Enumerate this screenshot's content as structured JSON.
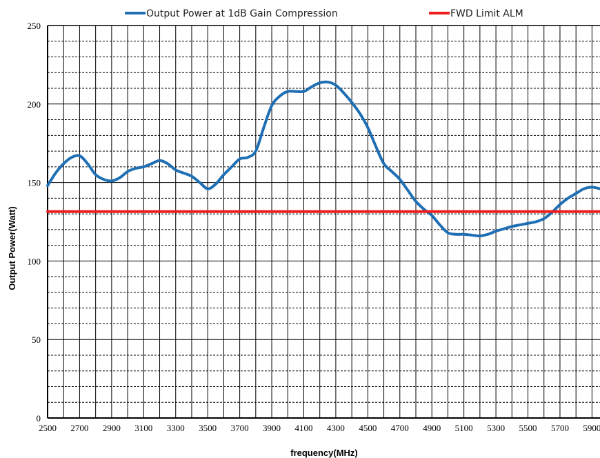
{
  "chart_data": {
    "type": "line",
    "xlabel": "frequency(MHz)",
    "ylabel": "Output Power(Watt)",
    "xlim": [
      2500,
      5950
    ],
    "ylim": [
      0,
      250
    ],
    "grid": true,
    "legend_position": "top",
    "y_ticks": [
      "0",
      "50",
      "100",
      "150",
      "200",
      "250"
    ],
    "x_ticks": [
      "2500",
      "2700",
      "2900",
      "3100",
      "3300",
      "3500",
      "3700",
      "3900",
      "4100",
      "4300",
      "4500",
      "4700",
      "4900",
      "5100",
      "5300",
      "5500",
      "5700",
      "5900"
    ],
    "series": [
      {
        "name": "Output Power at 1dB Gain Compression",
        "color": "#1f6fb4",
        "x": [
          2500,
          2550,
          2600,
          2650,
          2700,
          2750,
          2800,
          2850,
          2900,
          2950,
          3000,
          3050,
          3100,
          3150,
          3200,
          3250,
          3300,
          3350,
          3400,
          3450,
          3500,
          3550,
          3600,
          3650,
          3700,
          3750,
          3800,
          3850,
          3900,
          3950,
          4000,
          4050,
          4100,
          4150,
          4200,
          4250,
          4300,
          4350,
          4400,
          4450,
          4500,
          4550,
          4600,
          4650,
          4700,
          4750,
          4800,
          4850,
          4900,
          4950,
          5000,
          5050,
          5100,
          5150,
          5200,
          5250,
          5300,
          5350,
          5400,
          5450,
          5500,
          5550,
          5600,
          5650,
          5700,
          5750,
          5800,
          5850,
          5900,
          5950
        ],
        "y": [
          148,
          156,
          162,
          166,
          167,
          162,
          155,
          152,
          151,
          153,
          157,
          159,
          160,
          162,
          164,
          162,
          158,
          156,
          154,
          150,
          146,
          149,
          155,
          160,
          165,
          166,
          170,
          185,
          199,
          205,
          208,
          208,
          208,
          211,
          213.5,
          214,
          212,
          207,
          201,
          194,
          185,
          173,
          162,
          157,
          152,
          145,
          138,
          133,
          129,
          123,
          118,
          117,
          117,
          116.5,
          116,
          117,
          119,
          120.5,
          122,
          123,
          124,
          125,
          127,
          131,
          136,
          140,
          143,
          146,
          147,
          146
        ]
      },
      {
        "name": "FWD Limit ALM",
        "color": "#ee1c1c",
        "x": [
          2500,
          5950
        ],
        "y": [
          131.5,
          131.5
        ]
      }
    ]
  }
}
